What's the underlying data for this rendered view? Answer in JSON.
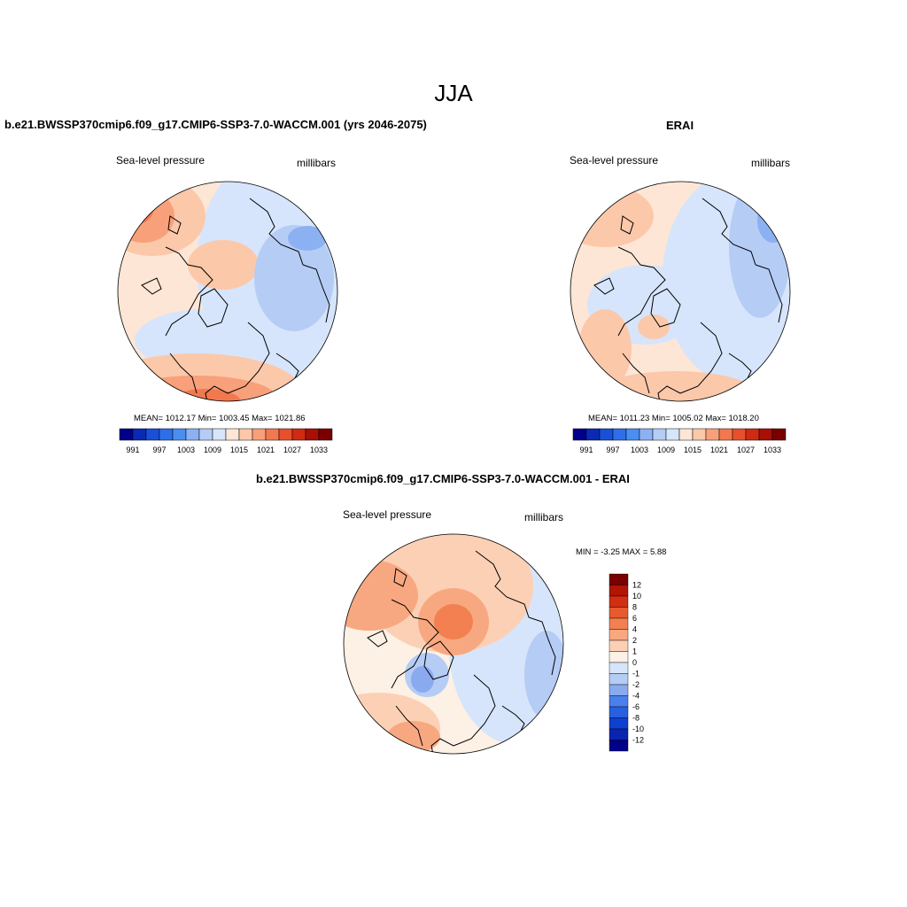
{
  "figure": {
    "season": "JJA",
    "colors": {
      "abs_scale": [
        "#00008b",
        "#0a2ab4",
        "#1850d8",
        "#2e6ee8",
        "#4a8ef0",
        "#8bb1f2",
        "#b5ccf5",
        "#d6e5fb",
        "#fde6d5",
        "#fcc8aa",
        "#f8a07a",
        "#f2784f",
        "#e8502c",
        "#d02a12",
        "#a80f05",
        "#7a0000"
      ],
      "diff_scale": [
        "#00008b",
        "#0a24b0",
        "#1040d0",
        "#2860e0",
        "#4a80ec",
        "#8aaaf0",
        "#b5ccf5",
        "#d6e5fb",
        "#fdf0e5",
        "#fcd0b5",
        "#f8a880",
        "#f28050",
        "#e85a2e",
        "#d22e12",
        "#b01505",
        "#7a0000"
      ],
      "land_outline": "#000000"
    }
  },
  "panels": [
    {
      "title": "b.e21.BWSSP370cmip6.f09_g17.CMIP6-SSP3-7.0-WACCM.001 (yrs 2046-2075)",
      "variable": "Sea-level pressure",
      "units": "millibars",
      "stats": "MEAN= 1012.17  Min= 1003.45  Max= 1021.86",
      "colorbar_ticks": [
        "991",
        "997",
        "1003",
        "1009",
        "1015",
        "1021",
        "1027",
        "1033"
      ],
      "projection": "polar stereographic, north pole"
    },
    {
      "title": "ERAI",
      "variable": "Sea-level pressure",
      "units": "millibars",
      "stats": "MEAN= 1011.23  Min= 1005.02  Max= 1018.20",
      "colorbar_ticks": [
        "991",
        "997",
        "1003",
        "1009",
        "1015",
        "1021",
        "1027",
        "1033"
      ],
      "projection": "polar stereographic, north pole"
    },
    {
      "title": "b.e21.BWSSP370cmip6.f09_g17.CMIP6-SSP3-7.0-WACCM.001 - ERAI",
      "variable": "Sea-level pressure",
      "units": "millibars",
      "stats": "MIN =  -3.25 MAX =   5.88",
      "colorbar_ticks": [
        "12",
        "10",
        "8",
        "6",
        "4",
        "2",
        "1",
        "0",
        "-1",
        "-2",
        "-4",
        "-6",
        "-8",
        "-10",
        "-12"
      ],
      "projection": "polar stereographic, north pole"
    }
  ]
}
